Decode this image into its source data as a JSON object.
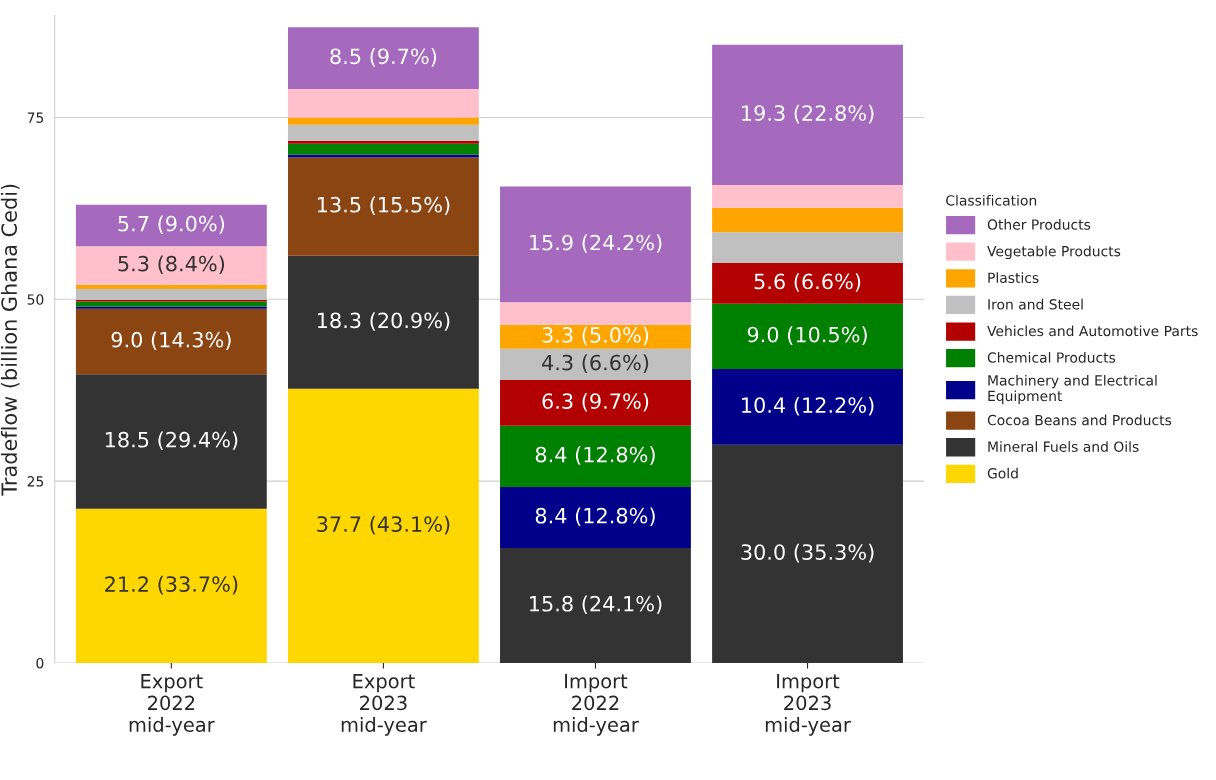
{
  "chart_data": {
    "type": "bar",
    "stacked": true,
    "ylabel": "Tradeflow (billion Ghana Cedi)",
    "legend_title": "Classification",
    "legend": "right",
    "grid": "y",
    "categories": [
      "Export\n2022\nmid-year",
      "Export\n2023\nmid-year",
      "Import\n2022\nmid-year",
      "Import\n2023\nmid-year"
    ],
    "ylim": [
      0,
      89
    ],
    "yticks": [
      0,
      25,
      50,
      75
    ],
    "series": [
      {
        "name": "Gold",
        "color": "#ffd700",
        "values": [
          21.2,
          37.7,
          null,
          null
        ],
        "value_labels": [
          "21.2 (33.7%)",
          "37.7 (43.1%)",
          null,
          null
        ]
      },
      {
        "name": "Mineral Fuels and Oils",
        "color": "#333333",
        "values": [
          18.5,
          18.3,
          15.8,
          30.0
        ],
        "value_labels": [
          "18.5 (29.4%)",
          "18.3 (20.9%)",
          "15.8 (24.1%)",
          "30.0 (35.3%)"
        ]
      },
      {
        "name": "Cocoa Beans and Products",
        "color": "#8b4513",
        "values": [
          9.0,
          13.5,
          null,
          null
        ],
        "value_labels": [
          "9.0 (14.3%)",
          "13.5 (15.5%)",
          null,
          null
        ]
      },
      {
        "name": "Machinery and Electrical\nEquipment",
        "color": "#00008b",
        "values": [
          0.3,
          0.4,
          8.4,
          10.4
        ],
        "value_labels": [
          null,
          null,
          "8.4 (12.8%)",
          "10.4 (12.2%)"
        ]
      },
      {
        "name": "Chemical Products",
        "color": "#008000",
        "values": [
          0.7,
          1.5,
          8.4,
          9.0
        ],
        "value_labels": [
          null,
          null,
          "8.4 (12.8%)",
          "9.0 (10.5%)"
        ]
      },
      {
        "name": "Vehicles and Automotive Parts",
        "color": "#b30000",
        "values": [
          0.2,
          0.4,
          6.3,
          5.6
        ],
        "value_labels": [
          null,
          null,
          "6.3 (9.7%)",
          "5.6 (6.6%)"
        ]
      },
      {
        "name": "Iron and Steel",
        "color": "#c0c0c0",
        "values": [
          1.5,
          2.2,
          4.3,
          4.2
        ],
        "value_labels": [
          null,
          null,
          "4.3 (6.6%)",
          null
        ]
      },
      {
        "name": "Plastics",
        "color": "#ffa500",
        "values": [
          0.6,
          1.0,
          3.3,
          3.4
        ],
        "value_labels": [
          null,
          null,
          "3.3 (5.0%)",
          null
        ]
      },
      {
        "name": "Vegetable Products",
        "color": "#ffc0cb",
        "values": [
          5.3,
          3.9,
          3.1,
          3.1
        ],
        "value_labels": [
          "5.3 (8.4%)",
          null,
          null,
          null
        ]
      },
      {
        "name": "Other Products",
        "color": "#a569bd",
        "values": [
          5.7,
          8.5,
          15.9,
          19.3
        ],
        "value_labels": [
          "5.7 (9.0%)",
          "8.5 (9.7%)",
          "15.9 (24.2%)",
          "19.3 (22.8%)"
        ]
      }
    ]
  }
}
